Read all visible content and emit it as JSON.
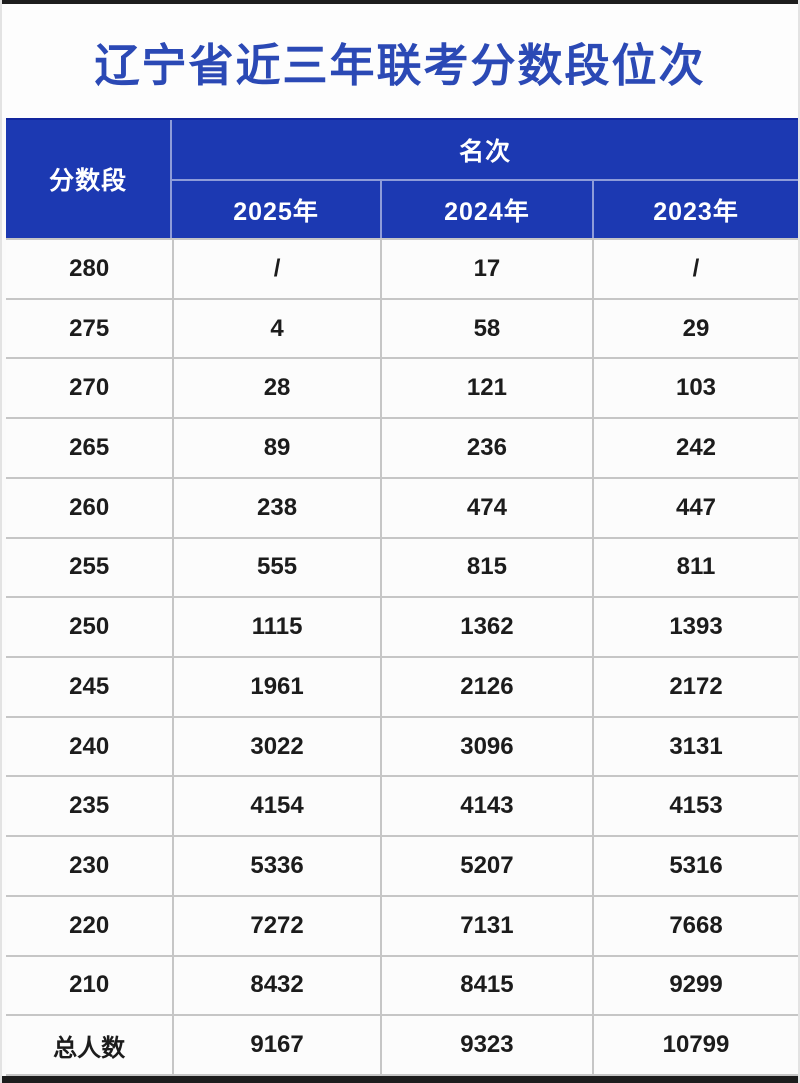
{
  "title": "辽宁省近三年联考分数段位次",
  "table": {
    "header": {
      "score_col": "分数段",
      "rank_group": "名次",
      "years": [
        "2025年",
        "2024年",
        "2023年"
      ]
    },
    "rows": [
      {
        "score": "280",
        "y2025": "/",
        "y2024": "17",
        "y2023": "/"
      },
      {
        "score": "275",
        "y2025": "4",
        "y2024": "58",
        "y2023": "29"
      },
      {
        "score": "270",
        "y2025": "28",
        "y2024": "121",
        "y2023": "103"
      },
      {
        "score": "265",
        "y2025": "89",
        "y2024": "236",
        "y2023": "242"
      },
      {
        "score": "260",
        "y2025": "238",
        "y2024": "474",
        "y2023": "447"
      },
      {
        "score": "255",
        "y2025": "555",
        "y2024": "815",
        "y2023": "811"
      },
      {
        "score": "250",
        "y2025": "1115",
        "y2024": "1362",
        "y2023": "1393"
      },
      {
        "score": "245",
        "y2025": "1961",
        "y2024": "2126",
        "y2023": "2172"
      },
      {
        "score": "240",
        "y2025": "3022",
        "y2024": "3096",
        "y2023": "3131"
      },
      {
        "score": "235",
        "y2025": "4154",
        "y2024": "4143",
        "y2023": "4153"
      },
      {
        "score": "230",
        "y2025": "5336",
        "y2024": "5207",
        "y2023": "5316"
      },
      {
        "score": "220",
        "y2025": "7272",
        "y2024": "7131",
        "y2023": "7668"
      },
      {
        "score": "210",
        "y2025": "8432",
        "y2024": "8415",
        "y2023": "9299"
      },
      {
        "score": "总人数",
        "y2025": "9167",
        "y2024": "9323",
        "y2023": "10799"
      }
    ]
  },
  "colors": {
    "header_bg": "#1c39b2",
    "title_text": "#2b49b5",
    "data_text": "#1c1c1c",
    "grid_line": "#c6c6c6",
    "cell_bg": "#fcfcfc",
    "frame_edge": "#1d1d1d"
  },
  "chart_data": {
    "type": "table",
    "title": "辽宁省近三年联考分数段位次",
    "column_group_header": "名次",
    "columns": [
      "分数段",
      "2025年",
      "2024年",
      "2023年"
    ],
    "rows": [
      [
        "280",
        "/",
        "17",
        "/"
      ],
      [
        "275",
        "4",
        "58",
        "29"
      ],
      [
        "270",
        "28",
        "121",
        "103"
      ],
      [
        "265",
        "89",
        "236",
        "242"
      ],
      [
        "260",
        "238",
        "474",
        "447"
      ],
      [
        "255",
        "555",
        "815",
        "811"
      ],
      [
        "250",
        "1115",
        "1362",
        "1393"
      ],
      [
        "245",
        "1961",
        "2126",
        "2172"
      ],
      [
        "240",
        "3022",
        "3096",
        "3131"
      ],
      [
        "235",
        "4154",
        "4143",
        "4153"
      ],
      [
        "230",
        "5336",
        "5207",
        "5316"
      ],
      [
        "220",
        "7272",
        "7131",
        "7668"
      ],
      [
        "210",
        "8432",
        "8415",
        "9299"
      ],
      [
        "总人数",
        "9167",
        "9323",
        "10799"
      ]
    ]
  }
}
